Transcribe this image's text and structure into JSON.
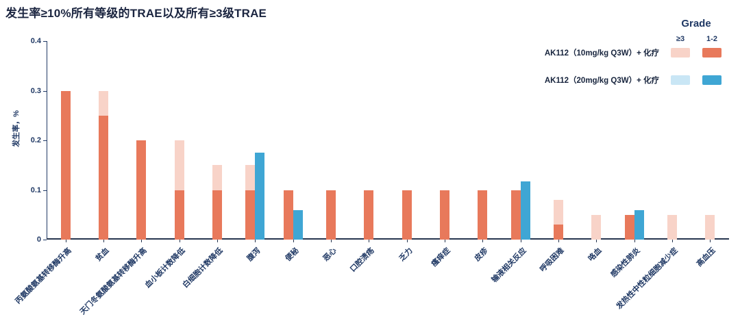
{
  "chart_data": {
    "type": "bar",
    "title": "发生率≥10%所有等级的TRAE以及所有≥3级TRAE",
    "ylabel": "发生率，%",
    "ylim": [
      0,
      0.4
    ],
    "yticks": [
      {
        "v": 0,
        "label": "0"
      },
      {
        "v": 0.1,
        "label": "0.1"
      },
      {
        "v": 0.2,
        "label": "0.2"
      },
      {
        "v": 0.3,
        "label": "0.3"
      },
      {
        "v": 0.4,
        "label": "0.4"
      }
    ],
    "grid": false,
    "legend": {
      "title": "Grade",
      "position": "top-right",
      "grade_headers": [
        "≥3",
        "1-2"
      ],
      "entries": [
        {
          "label": "AK112（10mg/kg Q3W）+ 化疗",
          "color_ge3": "#F8D3C8",
          "color_12": "#E8795B"
        },
        {
          "label": "AK112（20mg/kg Q3W）+ 化疗",
          "color_ge3": "#C9E6F5",
          "color_12": "#3FA6D4"
        }
      ]
    },
    "categories": [
      "丙氨酸氨基转移酶升高",
      "贫血",
      "天门冬氨酸氨基转移酶升高",
      "血小板计数降低",
      "白细胞计数降低",
      "腹泻",
      "便秘",
      "恶心",
      "口腔溃疡",
      "乏力",
      "瘙痒症",
      "皮疹",
      "输液相关反应",
      "呼吸困难",
      "咯血",
      "感染性肺炎",
      "发热性中性粒细胞减少症",
      "高血压"
    ],
    "series": [
      {
        "name": "AK112（10mg/kg Q3W）+ 化疗 1-2级",
        "values": [
          0.3,
          0.25,
          0.2,
          0.1,
          0.1,
          0.1,
          0.1,
          0.1,
          0.1,
          0.1,
          0.1,
          0.1,
          0.1,
          0.03,
          0,
          0.05,
          0,
          0
        ]
      },
      {
        "name": "AK112（10mg/kg Q3W）+ 化疗 ≥3级",
        "values": [
          0,
          0.05,
          0,
          0.1,
          0.05,
          0.05,
          0,
          0,
          0,
          0,
          0,
          0,
          0,
          0.05,
          0.05,
          0,
          0.05,
          0.05
        ]
      },
      {
        "name": "AK112（20mg/kg Q3W）+ 化疗 1-2级",
        "values": [
          0,
          0,
          0,
          0,
          0,
          0.175,
          0.06,
          0,
          0,
          0,
          0,
          0,
          0.117,
          0,
          0,
          0.06,
          0,
          0
        ]
      },
      {
        "name": "AK112（20mg/kg Q3W）+ 化疗 ≥3级",
        "values": [
          0,
          0,
          0,
          0,
          0,
          0,
          0,
          0,
          0,
          0,
          0,
          0,
          0,
          0,
          0,
          0,
          0,
          0
        ]
      }
    ],
    "axis_color": "#1F3864"
  }
}
